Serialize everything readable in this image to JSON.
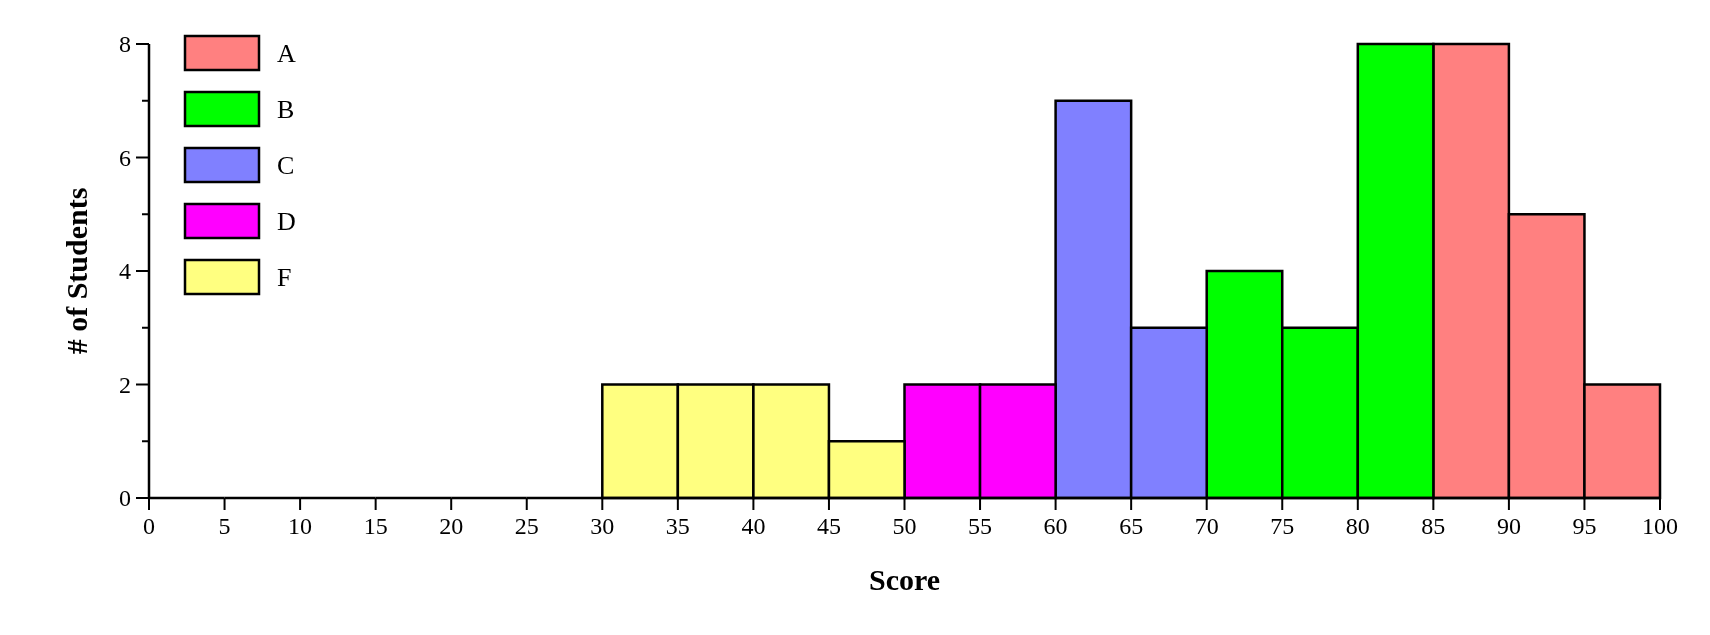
{
  "chart_data": {
    "type": "histogram",
    "xlabel": "Score",
    "ylabel": "# of Students",
    "bins": [
      0,
      5,
      10,
      15,
      20,
      25,
      30,
      35,
      40,
      45,
      50,
      55,
      60,
      65,
      70,
      75,
      80,
      85,
      90,
      95,
      100
    ],
    "series": [
      {
        "name": "A",
        "color": "#ff8080",
        "values": [
          null,
          null,
          null,
          null,
          null,
          null,
          null,
          null,
          null,
          null,
          null,
          null,
          null,
          null,
          null,
          null,
          null,
          8,
          5,
          2
        ]
      },
      {
        "name": "B",
        "color": "#00ff00",
        "values": [
          null,
          null,
          null,
          null,
          null,
          null,
          null,
          null,
          null,
          null,
          null,
          null,
          null,
          null,
          4,
          3,
          8,
          null,
          null,
          null
        ]
      },
      {
        "name": "C",
        "color": "#8080ff",
        "values": [
          null,
          null,
          null,
          null,
          null,
          null,
          null,
          null,
          null,
          null,
          null,
          null,
          7,
          3,
          null,
          null,
          null,
          null,
          null,
          null
        ]
      },
      {
        "name": "D",
        "color": "#ff00ff",
        "values": [
          null,
          null,
          null,
          null,
          null,
          null,
          null,
          null,
          null,
          null,
          2,
          2,
          null,
          null,
          null,
          null,
          null,
          null,
          null,
          null
        ]
      },
      {
        "name": "F",
        "color": "#ffff80",
        "values": [
          null,
          null,
          null,
          null,
          null,
          null,
          2,
          2,
          2,
          1,
          null,
          null,
          null,
          null,
          null,
          null,
          null,
          null,
          null,
          null
        ]
      }
    ],
    "xlim": [
      0,
      100
    ],
    "ylim": [
      0,
      8
    ],
    "xticks": [
      0,
      5,
      10,
      15,
      20,
      25,
      30,
      35,
      40,
      45,
      50,
      55,
      60,
      65,
      70,
      75,
      80,
      85,
      90,
      95,
      100
    ],
    "yticks": [
      0,
      {
        "value": 1,
        "label": null
      },
      2,
      {
        "value": 3,
        "label": null
      },
      4,
      {
        "value": 5,
        "label": null
      },
      6,
      {
        "value": 7,
        "label": null
      },
      8
    ],
    "grid": false,
    "legend": "top left"
  }
}
